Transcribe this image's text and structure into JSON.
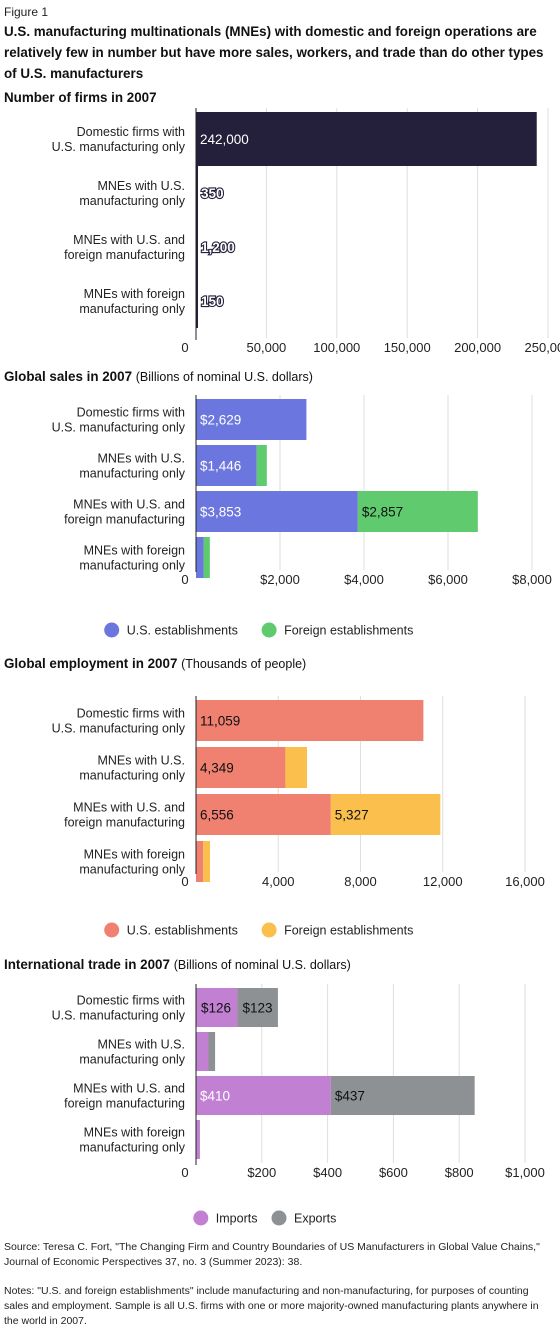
{
  "figure_label": "Figure 1",
  "figure_title": "U.S. manufacturing multinationals (MNEs) with domestic and foreign operations are relatively few in number but have more sales, workers, and trade than do other types of U.S. manufacturers",
  "source": "Source: Teresa C. Fort, \"The Changing Firm and Country Boundaries of US Manufacturers in Global Value Chains,\" Journal of Economic Perspectives 37, no. 3 (Summer 2023): 38.",
  "notes": "Notes: \"U.S. and foreign establishments\" include manufacturing and non-manufacturing, for purposes of counting sales and employment. Sample is all U.S. firms with one or more majority-owned manufacturing plants anywhere in the world in 2007.",
  "chart_data": [
    {
      "type": "bar",
      "orientation": "horizontal",
      "title": "Number of firms in 2007",
      "subtitle": "",
      "categories": [
        "Domestic firms with U.S. manufacturing only",
        "MNEs with U.S. manufacturing only",
        "MNEs with U.S. and foreign manufacturing",
        "MNEs with foreign manufacturing only"
      ],
      "series": [
        {
          "values": [
            242000,
            350,
            1200,
            150
          ],
          "labels": [
            "242,000",
            "350",
            "1,200",
            "150"
          ],
          "color": "#241f3a"
        }
      ],
      "xlim": [
        0,
        250000
      ],
      "xticks": [
        0,
        50000,
        100000,
        150000,
        200000,
        250000
      ],
      "xtick_labels": [
        "0",
        "50,000",
        "100,000",
        "150,000",
        "200,000",
        "250,000"
      ],
      "grid": true,
      "legend": []
    },
    {
      "type": "bar",
      "orientation": "horizontal",
      "stacked": true,
      "title": "Global sales in 2007",
      "subtitle": "(Billions of nominal U.S. dollars)",
      "categories": [
        "Domestic firms with U.S. manufacturing only",
        "MNEs with U.S. manufacturing only",
        "MNEs with U.S. and foreign manufacturing",
        "MNEs with foreign manufacturing only"
      ],
      "series": [
        {
          "name": "U.S. establishments",
          "color": "#6b76de",
          "values": [
            2629,
            1446,
            3853,
            180
          ],
          "labels": [
            "$2,629",
            "$1,446",
            "$3,853",
            ""
          ]
        },
        {
          "name": "Foreign establishments",
          "color": "#5fcb6e",
          "values": [
            0,
            240,
            2857,
            150
          ],
          "labels": [
            "",
            "",
            "$2,857",
            ""
          ]
        }
      ],
      "xlim": [
        0,
        8000
      ],
      "xticks": [
        0,
        2000,
        4000,
        6000,
        8000
      ],
      "xtick_labels": [
        "0",
        "$2,000",
        "$4,000",
        "$6,000",
        "$8,000"
      ],
      "grid": true,
      "legend": [
        "U.S. establishments",
        "Foreign establishments"
      ]
    },
    {
      "type": "bar",
      "orientation": "horizontal",
      "stacked": true,
      "title": "Global employment in 2007",
      "subtitle": "(Thousands of people)",
      "categories": [
        "Domestic firms with U.S. manufacturing only",
        "MNEs with U.S. manufacturing only",
        "MNEs with U.S. and foreign manufacturing",
        "MNEs with foreign manufacturing only"
      ],
      "series": [
        {
          "name": "U.S. establishments",
          "color": "#f08070",
          "values": [
            11059,
            4349,
            6556,
            350
          ],
          "labels": [
            "11,059",
            "4,349",
            "6,556",
            ""
          ]
        },
        {
          "name": "Foreign establishments",
          "color": "#fbbf4e",
          "values": [
            0,
            1050,
            5327,
            330
          ],
          "labels": [
            "",
            "",
            "5,327",
            ""
          ]
        }
      ],
      "xlim": [
        0,
        16000
      ],
      "xticks": [
        0,
        4000,
        8000,
        12000,
        16000
      ],
      "xtick_labels": [
        "0",
        "4,000",
        "8,000",
        "12,000",
        "16,000"
      ],
      "grid": true,
      "legend": [
        "U.S. establishments",
        "Foreign establishments"
      ]
    },
    {
      "type": "bar",
      "orientation": "horizontal",
      "stacked": true,
      "title": "International trade in 2007",
      "subtitle": "(Billions of nominal U.S. dollars)",
      "categories": [
        "Domestic firms with U.S. manufacturing only",
        "MNEs with U.S. manufacturing only",
        "MNEs with U.S. and foreign manufacturing",
        "MNEs with foreign manufacturing only"
      ],
      "series": [
        {
          "name": "Imports",
          "color": "#c280d2",
          "values": [
            126,
            38,
            410,
            12
          ],
          "labels": [
            "$126",
            "",
            "$410",
            ""
          ]
        },
        {
          "name": "Exports",
          "color": "#8d9193",
          "values": [
            123,
            20,
            437,
            0
          ],
          "labels": [
            "$123",
            "",
            "$437",
            ""
          ]
        }
      ],
      "xlim": [
        0,
        1000
      ],
      "xticks": [
        0,
        200,
        400,
        600,
        800,
        1000
      ],
      "xtick_labels": [
        "0",
        "$200",
        "$400",
        "$600",
        "$800",
        "$1,000"
      ],
      "grid": true,
      "legend": [
        "Imports",
        "Exports"
      ]
    }
  ]
}
